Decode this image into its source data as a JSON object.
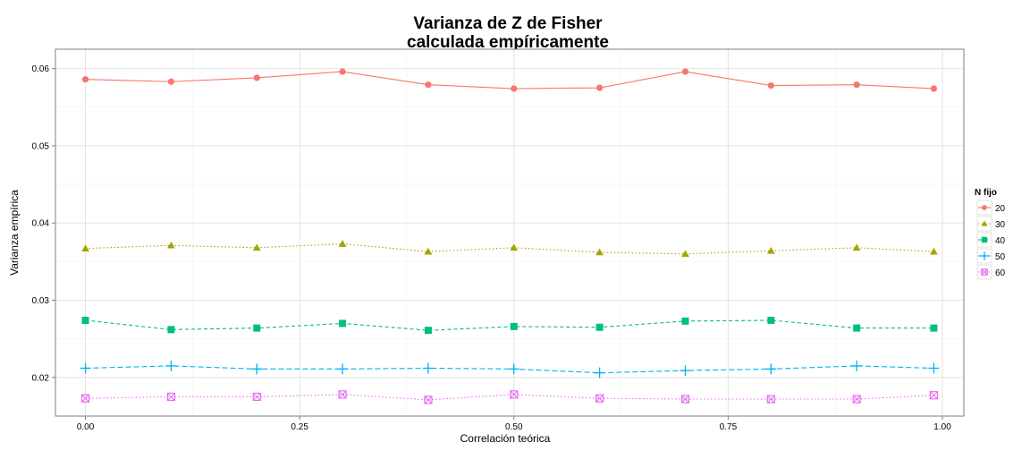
{
  "chart_data": {
    "type": "line",
    "title_line1": "Varianza de Z de Fisher",
    "title_line2": "calculada empíricamente",
    "xlabel": "Correlación teórica",
    "ylabel": "Varianza empírica",
    "xlim": [
      -0.035,
      1.025
    ],
    "ylim": [
      0.015,
      0.0625
    ],
    "x_ticks": [
      0.0,
      0.25,
      0.5,
      0.75,
      1.0
    ],
    "x_tick_labels": [
      "0.00",
      "0.25",
      "0.50",
      "0.75",
      "1.00"
    ],
    "y_ticks": [
      0.02,
      0.03,
      0.04,
      0.05,
      0.06
    ],
    "y_tick_labels": [
      "0.02",
      "0.03",
      "0.04",
      "0.05",
      "0.06"
    ],
    "grid": true,
    "legend_position": "right",
    "legend_title": "N fijo",
    "x": [
      0.0,
      0.1,
      0.2,
      0.3,
      0.4,
      0.5,
      0.6,
      0.7,
      0.8,
      0.9,
      0.99
    ],
    "series": [
      {
        "name": "20",
        "color": "#F8766D",
        "marker": "circle",
        "line": "solid",
        "values": [
          0.0586,
          0.0583,
          0.0588,
          0.0596,
          0.0579,
          0.0574,
          0.0575,
          0.0596,
          0.0578,
          0.0579,
          0.0574
        ]
      },
      {
        "name": "30",
        "color": "#A3A500",
        "marker": "triangle",
        "line": "dotted",
        "values": [
          0.0367,
          0.0371,
          0.0368,
          0.0373,
          0.0363,
          0.0368,
          0.0362,
          0.036,
          0.0364,
          0.0368,
          0.0363
        ]
      },
      {
        "name": "40",
        "color": "#00BF7D",
        "marker": "square",
        "line": "dashed",
        "values": [
          0.0274,
          0.0262,
          0.0264,
          0.027,
          0.0261,
          0.0266,
          0.0265,
          0.0273,
          0.0274,
          0.0264,
          0.0264
        ]
      },
      {
        "name": "50",
        "color": "#00B0F6",
        "marker": "plus",
        "line": "longdash",
        "values": [
          0.0212,
          0.0215,
          0.0211,
          0.0211,
          0.0212,
          0.0211,
          0.0206,
          0.0209,
          0.0211,
          0.0215,
          0.0212
        ]
      },
      {
        "name": "60",
        "color": "#E76BF3",
        "marker": "boxcross",
        "line": "dotted",
        "values": [
          0.0173,
          0.0175,
          0.0175,
          0.0178,
          0.0171,
          0.0178,
          0.0173,
          0.0172,
          0.0172,
          0.0172,
          0.0177
        ]
      }
    ]
  }
}
